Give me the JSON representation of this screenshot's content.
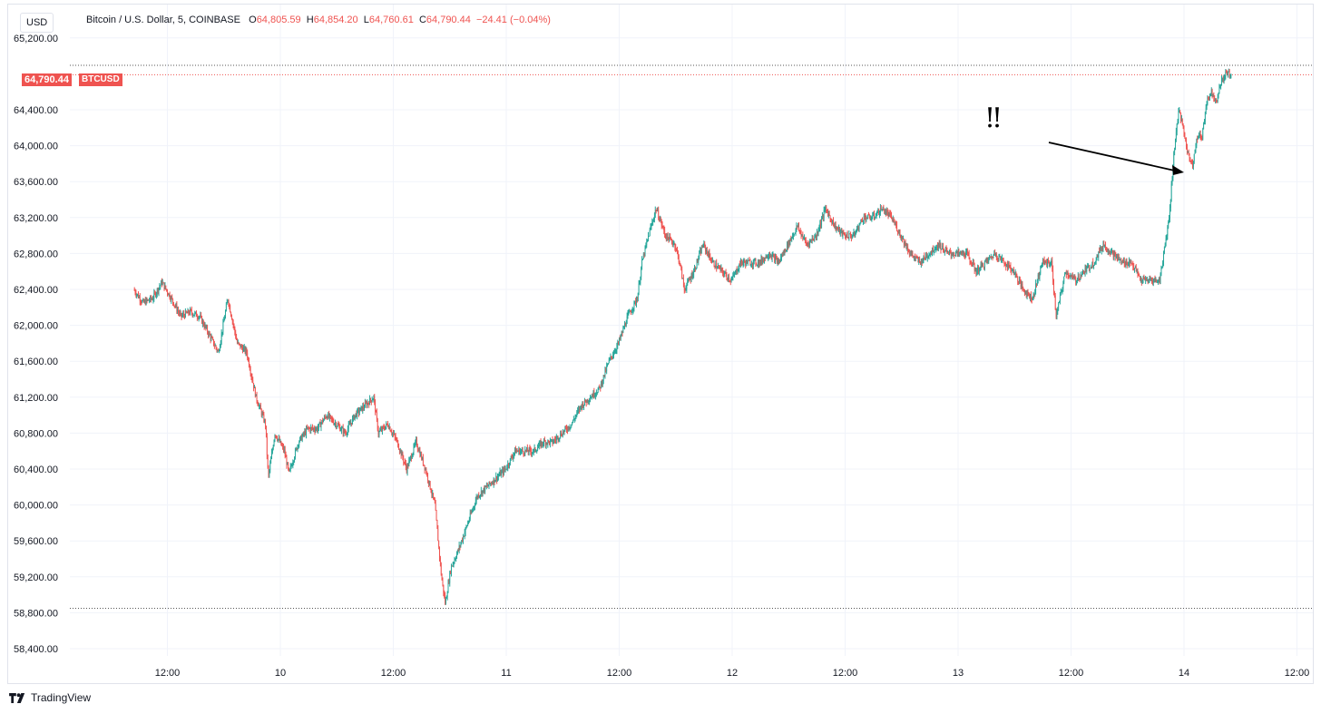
{
  "header": {
    "currency_label": "USD",
    "legend": {
      "symbol": "Bitcoin / U.S. Dollar, 5, COINBASE",
      "open_key": "O",
      "open_val": "64,805.59",
      "high_key": "H",
      "high_val": "64,854.20",
      "low_key": "L",
      "low_val": "64,760.61",
      "close_key": "C",
      "close_val": "64,790.44",
      "change": "−24.41 (−0.04%)"
    }
  },
  "last_price_label": "64,790.44",
  "symbol_label": "BTCUSD",
  "annotation_text": "!!",
  "brand": {
    "name": "TradingView",
    "icon": "tradingview-logo-icon"
  },
  "colors": {
    "up": "#26a69a",
    "down": "#ef5350",
    "grid": "#f0f3fa",
    "text": "#131722"
  },
  "chart_data": {
    "type": "candlestick",
    "title": "Bitcoin / U.S. Dollar, 5, COINBASE",
    "ylim": [
      58200,
      65400
    ],
    "y_ticks": [
      58400,
      58800,
      59200,
      59600,
      60000,
      60400,
      60800,
      61200,
      61600,
      62000,
      62400,
      62800,
      63200,
      63600,
      64000,
      64400,
      65200
    ],
    "y_tick_labels": [
      "58,400.00",
      "58,800.00",
      "59,200.00",
      "59,600.00",
      "60,000.00",
      "60,400.00",
      "60,800.00",
      "61,200.00",
      "61,600.00",
      "62,000.00",
      "62,400.00",
      "62,800.00",
      "63,200.00",
      "63,600.00",
      "64,000.00",
      "64,400.00",
      "65,200.00"
    ],
    "x_range_hours": [
      -15.5,
      107.6
    ],
    "x_ticks": [
      {
        "hour": -12,
        "label": "12:00"
      },
      {
        "hour": 0,
        "label": "10"
      },
      {
        "hour": 12,
        "label": "12:00"
      },
      {
        "hour": 24,
        "label": "11"
      },
      {
        "hour": 36,
        "label": "12:00"
      },
      {
        "hour": 48,
        "label": "12"
      },
      {
        "hour": 60,
        "label": "12:00"
      },
      {
        "hour": 72,
        "label": "13"
      },
      {
        "hour": 84,
        "label": "12:00"
      },
      {
        "hour": 96,
        "label": "14"
      },
      {
        "hour": 108,
        "label": "12:00"
      }
    ],
    "price_path": [
      [
        -15.5,
        62400
      ],
      [
        -14.5,
        62250
      ],
      [
        -13.5,
        62300
      ],
      [
        -12.5,
        62480
      ],
      [
        -11.5,
        62300
      ],
      [
        -10.5,
        62100
      ],
      [
        -9.5,
        62150
      ],
      [
        -8.5,
        62100
      ],
      [
        -7.5,
        61900
      ],
      [
        -6.5,
        61700
      ],
      [
        -5.5,
        62300
      ],
      [
        -4.5,
        61800
      ],
      [
        -3.5,
        61700
      ],
      [
        -2.5,
        61200
      ],
      [
        -1.5,
        60900
      ],
      [
        -1.2,
        60300
      ],
      [
        -0.5,
        60800
      ],
      [
        0.5,
        60600
      ],
      [
        1,
        60350
      ],
      [
        2,
        60700
      ],
      [
        3,
        60850
      ],
      [
        4,
        60850
      ],
      [
        5,
        61000
      ],
      [
        6,
        60900
      ],
      [
        7,
        60800
      ],
      [
        8,
        61000
      ],
      [
        9,
        61100
      ],
      [
        10,
        61200
      ],
      [
        10.5,
        60800
      ],
      [
        11.5,
        60900
      ],
      [
        12.5,
        60700
      ],
      [
        13.5,
        60400
      ],
      [
        14.5,
        60700
      ],
      [
        15.5,
        60400
      ],
      [
        16.5,
        60000
      ],
      [
        17.2,
        59200
      ],
      [
        17.6,
        58900
      ],
      [
        18.2,
        59300
      ],
      [
        19,
        59500
      ],
      [
        20,
        59800
      ],
      [
        21,
        60100
      ],
      [
        22,
        60200
      ],
      [
        23,
        60300
      ],
      [
        24,
        60400
      ],
      [
        25,
        60600
      ],
      [
        26,
        60600
      ],
      [
        27,
        60600
      ],
      [
        28,
        60700
      ],
      [
        29,
        60700
      ],
      [
        30,
        60800
      ],
      [
        31,
        60900
      ],
      [
        32,
        61100
      ],
      [
        33,
        61200
      ],
      [
        34,
        61300
      ],
      [
        35,
        61600
      ],
      [
        36,
        61800
      ],
      [
        37,
        62100
      ],
      [
        38,
        62300
      ],
      [
        38.5,
        62700
      ],
      [
        39.2,
        63000
      ],
      [
        40,
        63300
      ],
      [
        41,
        63000
      ],
      [
        42,
        62900
      ],
      [
        42.5,
        62700
      ],
      [
        43,
        62400
      ],
      [
        44,
        62600
      ],
      [
        45,
        62900
      ],
      [
        46,
        62700
      ],
      [
        47,
        62600
      ],
      [
        48,
        62500
      ],
      [
        49,
        62700
      ],
      [
        50,
        62700
      ],
      [
        51,
        62700
      ],
      [
        52,
        62800
      ],
      [
        53,
        62700
      ],
      [
        54,
        62900
      ],
      [
        55,
        63100
      ],
      [
        56,
        62900
      ],
      [
        57,
        63000
      ],
      [
        58,
        63300
      ],
      [
        59,
        63100
      ],
      [
        60,
        63000
      ],
      [
        61,
        63000
      ],
      [
        62,
        63200
      ],
      [
        63,
        63200
      ],
      [
        64,
        63300
      ],
      [
        65,
        63200
      ],
      [
        66,
        63000
      ],
      [
        67,
        62800
      ],
      [
        68,
        62700
      ],
      [
        69,
        62800
      ],
      [
        70,
        62900
      ],
      [
        71,
        62800
      ],
      [
        72,
        62800
      ],
      [
        73,
        62800
      ],
      [
        74,
        62600
      ],
      [
        75,
        62700
      ],
      [
        76,
        62800
      ],
      [
        77,
        62700
      ],
      [
        78,
        62600
      ],
      [
        79,
        62400
      ],
      [
        80,
        62300
      ],
      [
        81,
        62700
      ],
      [
        82,
        62700
      ],
      [
        82.5,
        62100
      ],
      [
        83.5,
        62600
      ],
      [
        84.5,
        62500
      ],
      [
        85.5,
        62600
      ],
      [
        86.5,
        62700
      ],
      [
        87.5,
        62900
      ],
      [
        88.5,
        62800
      ],
      [
        89.5,
        62700
      ],
      [
        90.5,
        62700
      ],
      [
        91.5,
        62500
      ],
      [
        92.5,
        62500
      ],
      [
        93.5,
        62500
      ],
      [
        94.5,
        63200
      ],
      [
        95,
        63900
      ],
      [
        95.5,
        64400
      ],
      [
        96,
        64200
      ],
      [
        96.5,
        63900
      ],
      [
        97,
        63800
      ],
      [
        97.5,
        64100
      ],
      [
        98,
        64100
      ],
      [
        98.5,
        64500
      ],
      [
        99,
        64600
      ],
      [
        99.5,
        64500
      ],
      [
        100,
        64700
      ],
      [
        100.5,
        64800
      ],
      [
        101,
        64800
      ]
    ],
    "last_price": 64790.44,
    "low_marker": 58850
  }
}
